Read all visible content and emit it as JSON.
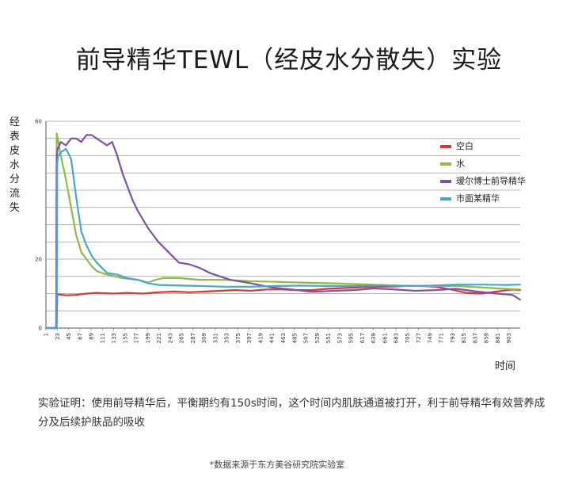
{
  "title": "前导精华TEWL（经皮水分散失）实验",
  "conclusion": "实验证明：使用前导精华后，平衡期约有150s时间，这个时间内肌肤通道被打开，利于前导精华有效营养成分及后续护肤品的吸收",
  "source_note": "*数据来源于东方美谷研究院实验室",
  "chart_data": {
    "type": "line",
    "title": "",
    "ylabel": "经表皮水分流失",
    "xlabel": "时间",
    "ylim": [
      0,
      60
    ],
    "xlim": [
      1,
      925
    ],
    "grid": true,
    "legend_position": "right",
    "y_ticks": [
      0,
      20,
      60
    ],
    "x_ticks": [
      1,
      23,
      45,
      67,
      89,
      111,
      133,
      155,
      177,
      199,
      221,
      243,
      265,
      287,
      309,
      331,
      353,
      375,
      397,
      419,
      441,
      463,
      485,
      507,
      529,
      551,
      573,
      595,
      617,
      639,
      661,
      683,
      705,
      727,
      749,
      771,
      793,
      815,
      837,
      859,
      881,
      903
    ],
    "series": [
      {
        "name": "空白",
        "color": "#d03b36",
        "x": [
          1,
          22,
          23,
          40,
          60,
          80,
          100,
          130,
          160,
          190,
          220,
          250,
          280,
          310,
          340,
          370,
          400,
          430,
          460,
          490,
          520,
          550,
          580,
          610,
          640,
          670,
          700,
          730,
          760,
          790,
          820,
          850,
          880,
          910,
          925
        ],
        "y": [
          0,
          0,
          9.8,
          9.5,
          9.6,
          10.0,
          10.2,
          10.0,
          10.2,
          10.0,
          10.4,
          10.6,
          10.4,
          10.6,
          10.8,
          11.0,
          10.8,
          11.2,
          11.2,
          11.0,
          11.0,
          11.4,
          11.6,
          11.8,
          12.0,
          12.0,
          12.2,
          12.2,
          12.0,
          11.2,
          10.2,
          10.0,
          10.6,
          11.2,
          11.0
        ]
      },
      {
        "name": "水",
        "color": "#8fba48",
        "x": [
          1,
          21,
          22,
          24,
          30,
          40,
          50,
          60,
          70,
          80,
          90,
          100,
          120,
          150,
          180,
          200,
          215,
          230,
          260,
          300,
          350,
          400,
          450,
          500,
          550,
          600,
          650,
          700,
          750,
          800,
          850,
          880,
          925
        ],
        "y": [
          0,
          0,
          56.5,
          55,
          50,
          43,
          35,
          27,
          22,
          20,
          18,
          16.5,
          15.5,
          14.5,
          14,
          13.2,
          14,
          14.5,
          14.5,
          14.0,
          14.0,
          13.6,
          13.4,
          13.2,
          13.0,
          12.8,
          12.5,
          12.3,
          12.2,
          12.2,
          11.8,
          11.5,
          11.2
        ]
      },
      {
        "name": "瑷尔博士前导精华",
        "color": "#7b52a4",
        "x": [
          1,
          21,
          22,
          24,
          30,
          40,
          50,
          60,
          70,
          80,
          90,
          100,
          110,
          120,
          130,
          140,
          150,
          160,
          170,
          180,
          200,
          220,
          240,
          260,
          280,
          300,
          320,
          340,
          360,
          380,
          400,
          440,
          480,
          520,
          560,
          600,
          640,
          680,
          720,
          760,
          800,
          840,
          880,
          910,
          925
        ],
        "y": [
          0,
          0,
          50,
          52,
          54,
          53,
          55,
          55,
          54,
          56,
          56,
          55,
          54,
          53,
          54,
          50,
          45,
          41,
          37,
          34,
          29,
          25,
          22,
          19,
          18.5,
          17.5,
          16,
          15,
          14,
          13.5,
          13,
          11.8,
          11.2,
          10.5,
          10.8,
          11.0,
          11.5,
          11.2,
          10.8,
          11.0,
          11.4,
          10.6,
          10.0,
          9.6,
          8.2
        ]
      },
      {
        "name": "市面某精华",
        "color": "#45a7c9",
        "x": [
          1,
          22,
          23,
          25,
          30,
          40,
          50,
          60,
          70,
          80,
          90,
          100,
          120,
          140,
          160,
          180,
          200,
          220,
          250,
          300,
          350,
          400,
          450,
          500,
          550,
          600,
          650,
          700,
          750,
          800,
          850,
          900,
          925
        ],
        "y": [
          0,
          0,
          48,
          50,
          51,
          52,
          49,
          38,
          28,
          24,
          21,
          19,
          16,
          15.5,
          14.5,
          14,
          13,
          12.5,
          12.4,
          12.2,
          12.0,
          12.0,
          12.2,
          12.3,
          12.2,
          12.2,
          12.4,
          12.2,
          12.3,
          12.6,
          12.6,
          12.5,
          12.6
        ]
      }
    ]
  }
}
